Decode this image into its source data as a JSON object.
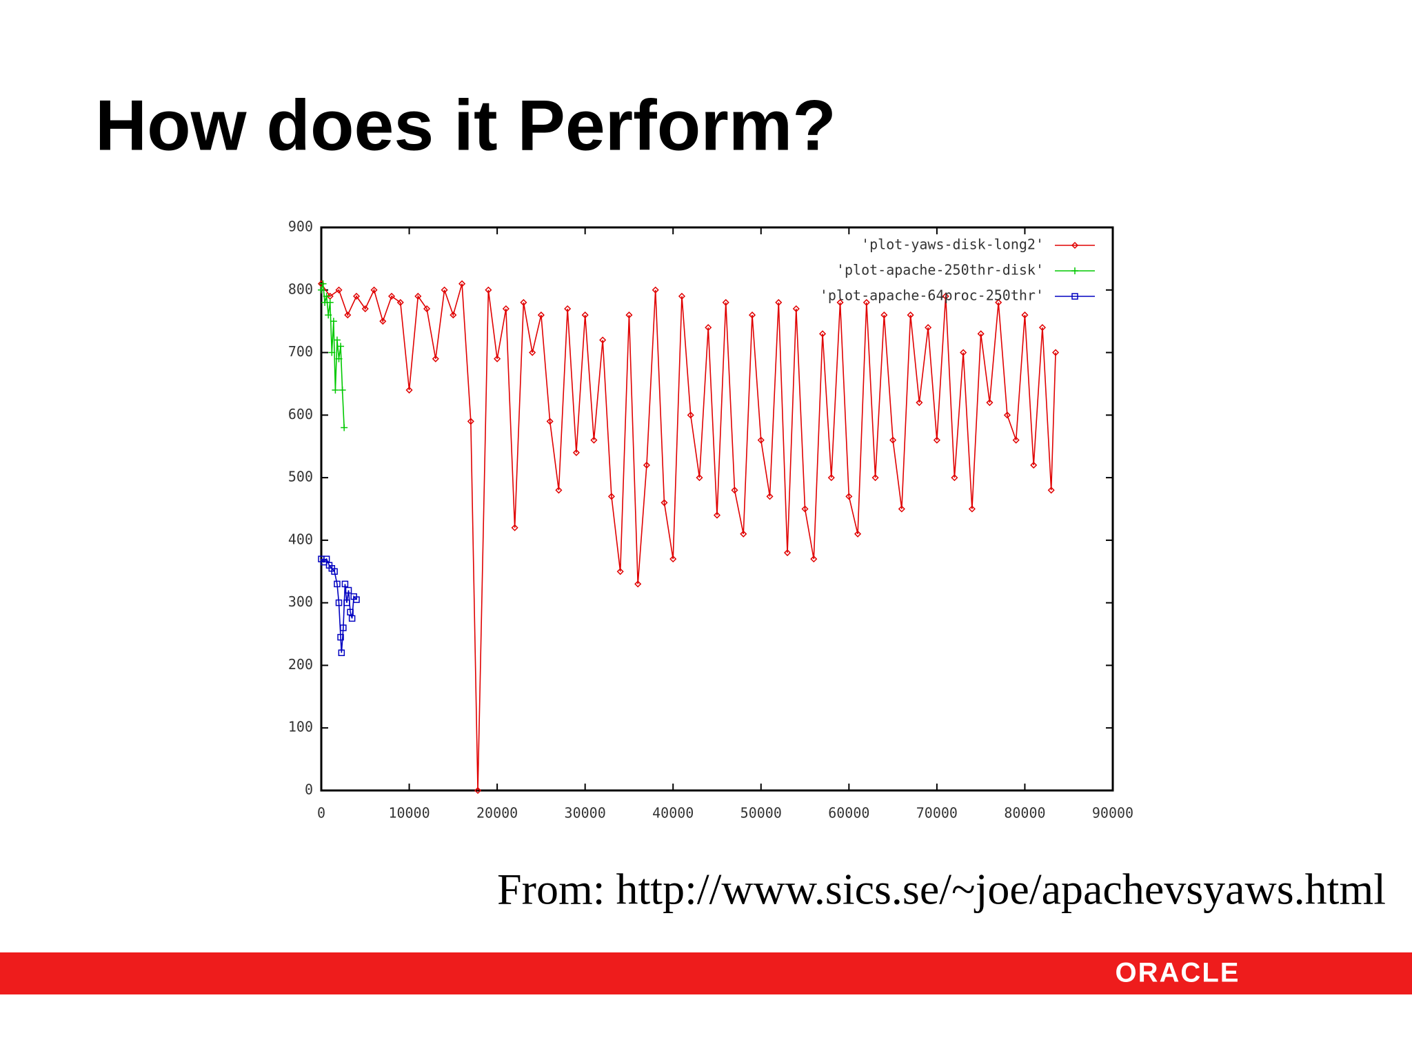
{
  "slide_title": "How does it Perform?",
  "source": "From: http://www.sics.se/~joe/apachevsyaws.html",
  "logo": "ORACLE",
  "chart_data": {
    "type": "line",
    "xlim": [
      0,
      90000
    ],
    "ylim": [
      0,
      900
    ],
    "xticks": [
      0,
      10000,
      20000,
      30000,
      40000,
      50000,
      60000,
      70000,
      80000,
      90000
    ],
    "yticks": [
      0,
      100,
      200,
      300,
      400,
      500,
      600,
      700,
      800,
      900
    ],
    "legend": "upper-right",
    "series": [
      {
        "name": "'plot-yaws-disk-long2'",
        "color": "#e00000",
        "marker": "diamond",
        "x": [
          0,
          1000,
          2000,
          3000,
          4000,
          5000,
          6000,
          7000,
          8000,
          9000,
          10000,
          11000,
          12000,
          13000,
          14000,
          15000,
          16000,
          17000,
          17800,
          19000,
          20000,
          21000,
          22000,
          23000,
          24000,
          25000,
          26000,
          27000,
          28000,
          29000,
          30000,
          31000,
          32000,
          33000,
          34000,
          35000,
          36000,
          37000,
          38000,
          39000,
          40000,
          41000,
          42000,
          43000,
          44000,
          45000,
          46000,
          47000,
          48000,
          49000,
          50000,
          51000,
          52000,
          53000,
          54000,
          55000,
          56000,
          57000,
          58000,
          59000,
          60000,
          61000,
          62000,
          63000,
          64000,
          65000,
          66000,
          67000,
          68000,
          69000,
          70000,
          71000,
          72000,
          73000,
          74000,
          75000,
          76000,
          77000,
          78000,
          79000,
          80000,
          81000,
          82000,
          83000,
          83500
        ],
        "values": [
          810,
          790,
          800,
          760,
          790,
          770,
          800,
          750,
          790,
          780,
          640,
          790,
          770,
          690,
          800,
          760,
          810,
          590,
          0,
          800,
          690,
          770,
          420,
          780,
          700,
          760,
          590,
          480,
          770,
          540,
          760,
          560,
          720,
          470,
          350,
          760,
          330,
          520,
          800,
          460,
          370,
          790,
          600,
          500,
          740,
          440,
          780,
          480,
          410,
          760,
          560,
          470,
          780,
          380,
          770,
          450,
          370,
          730,
          500,
          780,
          470,
          410,
          780,
          500,
          760,
          560,
          450,
          760,
          620,
          740,
          560,
          790,
          500,
          700,
          450,
          730,
          620,
          780,
          600,
          560,
          760,
          520,
          740,
          480,
          700
        ]
      },
      {
        "name": "'plot-apache-250thr-disk'",
        "color": "#00c800",
        "marker": "plus",
        "x": [
          0,
          200,
          400,
          600,
          800,
          1000,
          1200,
          1400,
          1600,
          1800,
          2000,
          2200,
          2400,
          2600
        ],
        "values": [
          800,
          810,
          780,
          790,
          760,
          780,
          700,
          750,
          640,
          720,
          690,
          710,
          640,
          580
        ]
      },
      {
        "name": "'plot-apache-64proc-250thr'",
        "color": "#0000c0",
        "marker": "square",
        "x": [
          0,
          300,
          600,
          900,
          1200,
          1500,
          1800,
          2000,
          2200,
          2300,
          2500,
          2700,
          2900,
          3100,
          3300,
          3500,
          3700,
          4000
        ],
        "values": [
          370,
          365,
          370,
          360,
          355,
          350,
          330,
          300,
          245,
          220,
          260,
          330,
          300,
          320,
          285,
          275,
          310,
          305
        ]
      }
    ]
  }
}
